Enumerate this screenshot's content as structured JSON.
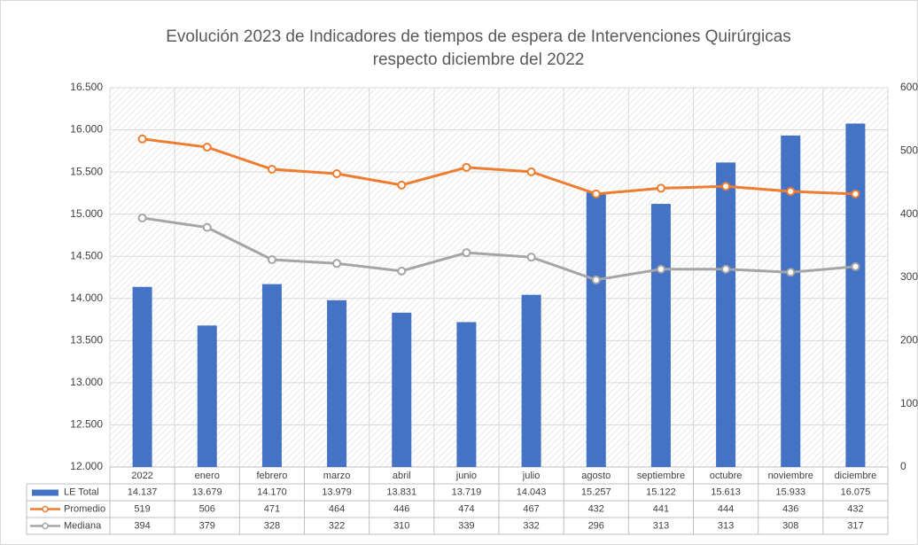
{
  "chart_data": {
    "type": "bar",
    "title": [
      "Evolución 2023 de Indicadores de tiempos de espera de Intervenciones Quirúrgicas",
      "respecto diciembre del 2022"
    ],
    "categories": [
      "2022",
      "enero",
      "febrero",
      "marzo",
      "abril",
      "junio",
      "julio",
      "agosto",
      "septiembre",
      "octubre",
      "noviembre",
      "diciembre"
    ],
    "series": [
      {
        "name": "LE Total",
        "type": "bar",
        "color": "#4472c4",
        "values": [
          14137,
          13679,
          14170,
          13979,
          13831,
          13719,
          14043,
          15257,
          15122,
          15613,
          15933,
          16075
        ],
        "value_labels": [
          "14.137",
          "13.679",
          "14.170",
          "13.979",
          "13.831",
          "13.719",
          "14.043",
          "15.257",
          "15.122",
          "15.613",
          "15.933",
          "16.075"
        ]
      },
      {
        "name": "Promedio",
        "type": "line",
        "axis": "y2",
        "color": "#ed7d31",
        "values": [
          519,
          506,
          471,
          464,
          446,
          474,
          467,
          432,
          441,
          444,
          436,
          432
        ]
      },
      {
        "name": "Mediana",
        "type": "line",
        "axis": "y2",
        "color": "#a5a5a5",
        "values": [
          394,
          379,
          328,
          322,
          310,
          339,
          332,
          296,
          313,
          313,
          308,
          317
        ]
      }
    ],
    "ylim": [
      12000,
      16500
    ],
    "yticks": [
      {
        "value": 12000,
        "label": "12.000"
      },
      {
        "value": 12500,
        "label": "12.500"
      },
      {
        "value": 13000,
        "label": "13.000"
      },
      {
        "value": 13500,
        "label": "13.500"
      },
      {
        "value": 14000,
        "label": "14.000"
      },
      {
        "value": 14500,
        "label": "14.500"
      },
      {
        "value": 15000,
        "label": "15.000"
      },
      {
        "value": 15500,
        "label": "15.500"
      },
      {
        "value": 16000,
        "label": "16.000"
      },
      {
        "value": 16500,
        "label": "16.500"
      }
    ],
    "y2lim": [
      0,
      600
    ],
    "y2ticks": [
      0,
      100,
      200,
      300,
      400,
      500,
      600
    ],
    "grid": true
  }
}
